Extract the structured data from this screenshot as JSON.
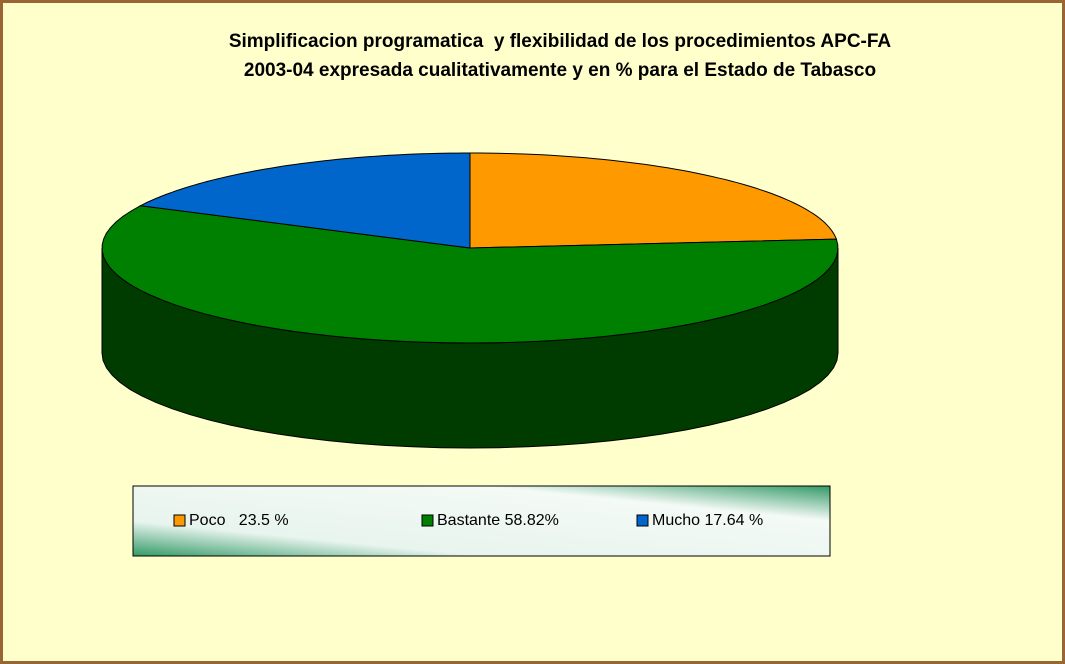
{
  "chart_data": {
    "type": "pie",
    "title": [
      "Simplificacion programatica  y flexibilidad de los procedimientos APC-FA",
      "2003-04 expresada cualitativamente y en % para el Estado de Tabasco"
    ],
    "categories": [
      "Poco   23.5 %",
      "Bastante 58.82%",
      "Mucho 17.64 %"
    ],
    "values": [
      23.5,
      58.82,
      17.64
    ],
    "colors": [
      "#FF9900",
      "#008000",
      "#0066CC"
    ],
    "side_colors": [
      "#A35F00",
      "#003C00",
      "#003F80"
    ],
    "legend": "bottom"
  }
}
